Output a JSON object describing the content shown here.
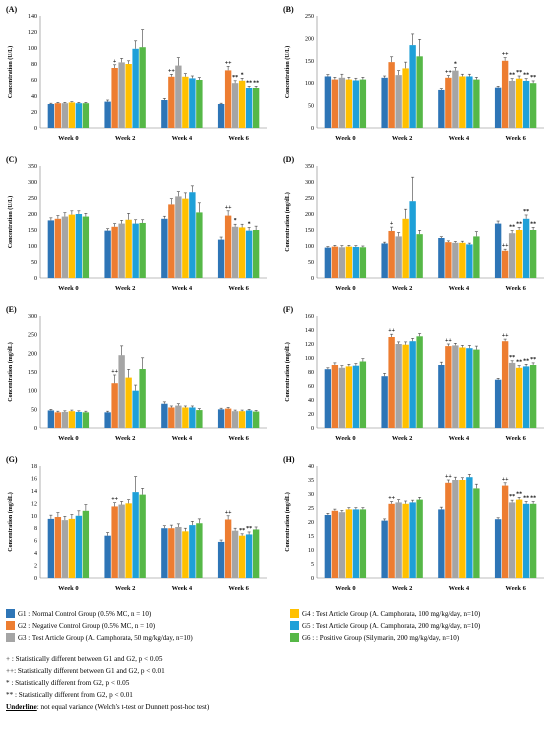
{
  "colors": {
    "G1": "#2e75b6",
    "G2": "#ed7d31",
    "G3": "#a5a5a5",
    "G4": "#ffc000",
    "G5": "#1ea0d8",
    "G6": "#56b847",
    "error": "#404040",
    "axis": "#7f7f7f"
  },
  "chart_data": [
    {
      "panel": "(A)",
      "type": "bar",
      "ylabel": "Concentration (U/L)",
      "ylim": [
        0,
        140
      ],
      "yticks": [
        0,
        20,
        40,
        60,
        80,
        100,
        120,
        140
      ],
      "categories": [
        "Week 0",
        "Week 2",
        "Week 4",
        "Week 6"
      ],
      "series": [
        {
          "name": "G1",
          "values": [
            30,
            33,
            35,
            30
          ],
          "err": [
            1,
            2,
            2,
            1
          ]
        },
        {
          "name": "G2",
          "values": [
            31,
            75,
            64,
            72
          ],
          "err": [
            1,
            4,
            3,
            5
          ]
        },
        {
          "name": "G3",
          "values": [
            31,
            82,
            78,
            56
          ],
          "err": [
            1,
            5,
            10,
            3
          ]
        },
        {
          "name": "G4",
          "values": [
            32,
            80,
            64,
            59
          ],
          "err": [
            1,
            4,
            4,
            3
          ]
        },
        {
          "name": "G5",
          "values": [
            31,
            99,
            62,
            50
          ],
          "err": [
            1,
            10,
            3,
            2
          ]
        },
        {
          "name": "G6",
          "values": [
            31,
            101,
            60,
            50
          ],
          "err": [
            1,
            22,
            3,
            2
          ]
        }
      ],
      "annotations": [
        {
          "week": 1,
          "series": 1,
          "text": "+"
        },
        {
          "week": 2,
          "series": 1,
          "text": "++"
        },
        {
          "week": 3,
          "series": 1,
          "text": "++"
        },
        {
          "week": 3,
          "series": 2,
          "text": "**"
        },
        {
          "week": 3,
          "series": 3,
          "text": "*"
        },
        {
          "week": 3,
          "series": 4,
          "text": "**"
        },
        {
          "week": 3,
          "series": 5,
          "text": "**"
        }
      ]
    },
    {
      "panel": "(B)",
      "type": "bar",
      "ylabel": "Concentration (U/L)",
      "ylim": [
        0,
        250
      ],
      "yticks": [
        0,
        50,
        100,
        150,
        200,
        250
      ],
      "categories": [
        "Week 0",
        "Week 2",
        "Week 4",
        "Week 6"
      ],
      "series": [
        {
          "name": "G1",
          "values": [
            115,
            112,
            85,
            90
          ],
          "err": [
            4,
            4,
            3,
            3
          ]
        },
        {
          "name": "G2",
          "values": [
            108,
            147,
            112,
            150
          ],
          "err": [
            5,
            12,
            5,
            7
          ]
        },
        {
          "name": "G3",
          "values": [
            112,
            118,
            128,
            105
          ],
          "err": [
            8,
            10,
            7,
            5
          ]
        },
        {
          "name": "G4",
          "values": [
            108,
            133,
            115,
            110
          ],
          "err": [
            5,
            14,
            5,
            6
          ]
        },
        {
          "name": "G5",
          "values": [
            106,
            185,
            115,
            105
          ],
          "err": [
            5,
            25,
            5,
            5
          ]
        },
        {
          "name": "G6",
          "values": [
            108,
            160,
            108,
            100
          ],
          "err": [
            5,
            38,
            5,
            5
          ]
        }
      ],
      "annotations": [
        {
          "week": 2,
          "series": 1,
          "text": "++"
        },
        {
          "week": 2,
          "series": 2,
          "text": "*"
        },
        {
          "week": 3,
          "series": 1,
          "text": "++"
        },
        {
          "week": 3,
          "series": 2,
          "text": "**"
        },
        {
          "week": 3,
          "series": 3,
          "text": "**"
        },
        {
          "week": 3,
          "series": 4,
          "text": "**"
        },
        {
          "week": 3,
          "series": 5,
          "text": "**"
        }
      ]
    },
    {
      "panel": "(C)",
      "type": "bar",
      "ylabel": "Concentration (U/L)",
      "ylim": [
        0,
        350
      ],
      "yticks": [
        0,
        50,
        100,
        150,
        200,
        250,
        300,
        350
      ],
      "categories": [
        "Week 0",
        "Week 2",
        "Week 4",
        "Week 6"
      ],
      "series": [
        {
          "name": "G1",
          "values": [
            180,
            148,
            185,
            120
          ],
          "err": [
            8,
            6,
            8,
            8
          ]
        },
        {
          "name": "G2",
          "values": [
            185,
            160,
            230,
            195
          ],
          "err": [
            10,
            10,
            18,
            15
          ]
        },
        {
          "name": "G3",
          "values": [
            192,
            170,
            255,
            160
          ],
          "err": [
            12,
            10,
            15,
            8
          ]
        },
        {
          "name": "G4",
          "values": [
            198,
            182,
            248,
            158
          ],
          "err": [
            12,
            20,
            18,
            10
          ]
        },
        {
          "name": "G5",
          "values": [
            200,
            170,
            268,
            148
          ],
          "err": [
            10,
            12,
            20,
            10
          ]
        },
        {
          "name": "G6",
          "values": [
            192,
            172,
            205,
            150
          ],
          "err": [
            10,
            10,
            30,
            12
          ]
        }
      ],
      "annotations": [
        {
          "week": 3,
          "series": 1,
          "text": "++"
        },
        {
          "week": 3,
          "series": 2,
          "text": "*"
        },
        {
          "week": 3,
          "series": 4,
          "text": "*"
        }
      ]
    },
    {
      "panel": "(D)",
      "type": "bar",
      "ylabel": "Concentration (mg/dL)",
      "ylim": [
        0,
        350
      ],
      "yticks": [
        0,
        50,
        100,
        150,
        200,
        250,
        300,
        350
      ],
      "categories": [
        "Week 0",
        "Week 2",
        "Week 4",
        "Week 6"
      ],
      "series": [
        {
          "name": "G1",
          "values": [
            95,
            108,
            125,
            170
          ],
          "err": [
            3,
            4,
            4,
            8
          ]
        },
        {
          "name": "G2",
          "values": [
            98,
            147,
            112,
            85
          ],
          "err": [
            4,
            12,
            4,
            5
          ]
        },
        {
          "name": "G3",
          "values": [
            96,
            130,
            110,
            140
          ],
          "err": [
            5,
            12,
            4,
            8
          ]
        },
        {
          "name": "G4",
          "values": [
            98,
            185,
            110,
            150
          ],
          "err": [
            4,
            30,
            5,
            8
          ]
        },
        {
          "name": "G5",
          "values": [
            97,
            240,
            105,
            185
          ],
          "err": [
            4,
            75,
            4,
            12
          ]
        },
        {
          "name": "G6",
          "values": [
            96,
            137,
            130,
            150
          ],
          "err": [
            4,
            12,
            15,
            8
          ]
        }
      ],
      "annotations": [
        {
          "week": 1,
          "series": 1,
          "text": "+"
        },
        {
          "week": 3,
          "series": 1,
          "text": "++"
        },
        {
          "week": 3,
          "series": 2,
          "text": "**"
        },
        {
          "week": 3,
          "series": 3,
          "text": "**"
        },
        {
          "week": 3,
          "series": 4,
          "text": "**"
        },
        {
          "week": 3,
          "series": 5,
          "text": "**"
        }
      ]
    },
    {
      "panel": "(E)",
      "type": "bar",
      "ylabel": "Concentration (mg/dL)",
      "ylim": [
        0,
        300
      ],
      "yticks": [
        0,
        50,
        100,
        150,
        200,
        250,
        300
      ],
      "categories": [
        "Week 0",
        "Week 2",
        "Week 4",
        "Week 6"
      ],
      "series": [
        {
          "name": "G1",
          "values": [
            47,
            42,
            65,
            50
          ],
          "err": [
            3,
            3,
            5,
            3
          ]
        },
        {
          "name": "G2",
          "values": [
            42,
            120,
            55,
            52
          ],
          "err": [
            3,
            22,
            4,
            3
          ]
        },
        {
          "name": "G3",
          "values": [
            43,
            195,
            60,
            45
          ],
          "err": [
            3,
            25,
            5,
            3
          ]
        },
        {
          "name": "G4",
          "values": [
            45,
            135,
            55,
            45
          ],
          "err": [
            3,
            22,
            4,
            3
          ]
        },
        {
          "name": "G5",
          "values": [
            43,
            100,
            55,
            47
          ],
          "err": [
            3,
            15,
            4,
            3
          ]
        },
        {
          "name": "G6",
          "values": [
            42,
            158,
            48,
            44
          ],
          "err": [
            3,
            30,
            4,
            3
          ]
        }
      ],
      "annotations": [
        {
          "week": 1,
          "series": 1,
          "text": "++"
        }
      ]
    },
    {
      "panel": "(F)",
      "type": "bar",
      "ylabel": "Concentration (mg/dL)",
      "ylim": [
        0,
        160
      ],
      "yticks": [
        0,
        20,
        40,
        60,
        80,
        100,
        120,
        140,
        160
      ],
      "categories": [
        "Week 0",
        "Week 2",
        "Week 4",
        "Week 6"
      ],
      "series": [
        {
          "name": "G1",
          "values": [
            84,
            74,
            90,
            69
          ],
          "err": [
            2,
            4,
            4,
            2
          ]
        },
        {
          "name": "G2",
          "values": [
            90,
            130,
            117,
            124
          ],
          "err": [
            3,
            4,
            3,
            3
          ]
        },
        {
          "name": "G3",
          "values": [
            86,
            120,
            118,
            93
          ],
          "err": [
            3,
            3,
            3,
            3
          ]
        },
        {
          "name": "G4",
          "values": [
            88,
            119,
            115,
            86
          ],
          "err": [
            3,
            4,
            3,
            3
          ]
        },
        {
          "name": "G5",
          "values": [
            89,
            124,
            114,
            88
          ],
          "err": [
            3,
            4,
            4,
            3
          ]
        },
        {
          "name": "G6",
          "values": [
            95,
            131,
            112,
            90
          ],
          "err": [
            4,
            4,
            5,
            3
          ]
        }
      ],
      "annotations": [
        {
          "week": 1,
          "series": 1,
          "text": "++"
        },
        {
          "week": 2,
          "series": 1,
          "text": "++"
        },
        {
          "week": 3,
          "series": 1,
          "text": "++"
        },
        {
          "week": 3,
          "series": 2,
          "text": "**"
        },
        {
          "week": 3,
          "series": 3,
          "text": "**"
        },
        {
          "week": 3,
          "series": 4,
          "text": "**"
        },
        {
          "week": 3,
          "series": 5,
          "text": "**"
        }
      ]
    },
    {
      "panel": "(G)",
      "type": "bar",
      "ylabel": "Concentration (mg/dL)",
      "ylim": [
        0,
        18
      ],
      "yticks": [
        0,
        2,
        4,
        6,
        8,
        10,
        12,
        14,
        16,
        18
      ],
      "categories": [
        "Week 0",
        "Week 2",
        "Week 4",
        "Week 6"
      ],
      "series": [
        {
          "name": "G1",
          "values": [
            9.5,
            6.8,
            8.0,
            5.8
          ],
          "err": [
            0.6,
            0.5,
            0.4,
            0.3
          ]
        },
        {
          "name": "G2",
          "values": [
            9.8,
            11.5,
            8.0,
            9.4
          ],
          "err": [
            0.7,
            0.6,
            0.5,
            0.6
          ]
        },
        {
          "name": "G3",
          "values": [
            9.3,
            11.8,
            8.2,
            7.6
          ],
          "err": [
            0.6,
            0.5,
            0.5,
            0.4
          ]
        },
        {
          "name": "G4",
          "values": [
            9.5,
            12.0,
            7.5,
            6.8
          ],
          "err": [
            0.7,
            0.6,
            0.5,
            0.3
          ]
        },
        {
          "name": "G5",
          "values": [
            10.0,
            13.8,
            8.5,
            7.0
          ],
          "err": [
            0.8,
            2.5,
            0.6,
            0.4
          ]
        },
        {
          "name": "G6",
          "values": [
            10.8,
            13.4,
            8.8,
            7.8
          ],
          "err": [
            1.0,
            1.0,
            0.7,
            0.4
          ]
        }
      ],
      "annotations": [
        {
          "week": 1,
          "series": 1,
          "text": "++"
        },
        {
          "week": 3,
          "series": 1,
          "text": "++"
        },
        {
          "week": 3,
          "series": 3,
          "text": "**"
        },
        {
          "week": 3,
          "series": 4,
          "text": "**"
        }
      ]
    },
    {
      "panel": "(H)",
      "type": "bar",
      "ylabel": "Concentration (mg/dL)",
      "ylim": [
        0,
        40
      ],
      "yticks": [
        0,
        5,
        10,
        15,
        20,
        25,
        30,
        35,
        40
      ],
      "categories": [
        "Week 0",
        "Week 2",
        "Week 4",
        "Week 6"
      ],
      "series": [
        {
          "name": "G1",
          "values": [
            22.5,
            20.5,
            24.5,
            21
          ],
          "err": [
            0.6,
            0.6,
            0.8,
            0.5
          ]
        },
        {
          "name": "G2",
          "values": [
            24,
            26.5,
            34,
            33
          ],
          "err": [
            0.6,
            0.8,
            1.0,
            1.0
          ]
        },
        {
          "name": "G3",
          "values": [
            23.5,
            27,
            35,
            27
          ],
          "err": [
            0.6,
            1.0,
            1.0,
            0.8
          ]
        },
        {
          "name": "G4",
          "values": [
            24.5,
            26.5,
            35,
            28
          ],
          "err": [
            0.6,
            1.0,
            0.8,
            0.8
          ]
        },
        {
          "name": "G5",
          "values": [
            24.5,
            27,
            36,
            26.5
          ],
          "err": [
            0.6,
            0.8,
            1.0,
            0.8
          ]
        },
        {
          "name": "G6",
          "values": [
            24.5,
            28,
            32,
            26.5
          ],
          "err": [
            0.6,
            0.8,
            1.5,
            0.8
          ]
        }
      ],
      "annotations": [
        {
          "week": 1,
          "series": 1,
          "text": "++"
        },
        {
          "week": 2,
          "series": 1,
          "text": "++"
        },
        {
          "week": 3,
          "series": 1,
          "text": "++"
        },
        {
          "week": 3,
          "series": 2,
          "text": "**"
        },
        {
          "week": 3,
          "series": 3,
          "text": "**"
        },
        {
          "week": 3,
          "series": 4,
          "text": "**"
        },
        {
          "week": 3,
          "series": 5,
          "text": "**"
        }
      ]
    }
  ],
  "legend": {
    "items": [
      {
        "key": "G1",
        "label": "G1 : Normal Control Group (0.5% MC, n = 10)"
      },
      {
        "key": "G2",
        "label": "G2 : Negative Control Group (0.5% MC, n = 10)"
      },
      {
        "key": "G3",
        "label": "G3 : Test Article Group (A. Camphorata, 50 mg/kg/day, n=10)"
      },
      {
        "key": "G4",
        "label": "G4 : Test Article Group (A. Camphorata, 100 mg/kg/day, n=10)"
      },
      {
        "key": "G5",
        "label": "G5 : Test Article Group (A. Camphorata, 200 mg/kg/day, n=10)"
      },
      {
        "key": "G6",
        "label": "G6 : : Positive Group (Silymarin, 200 mg/kg/day, n=10)"
      }
    ],
    "notes": [
      "+ : Statistically different between G1 and G2, p < 0.05",
      "++: Statistically different between G1 and G2, p < 0.01",
      "* : Statistically different from G2, p < 0.05",
      "** : Statistically different from G2, p < 0.01"
    ],
    "underline_label": "Underline",
    "underline_text": ": not equal variance (Welch's t-test or Dunnett post-hoc test)"
  }
}
